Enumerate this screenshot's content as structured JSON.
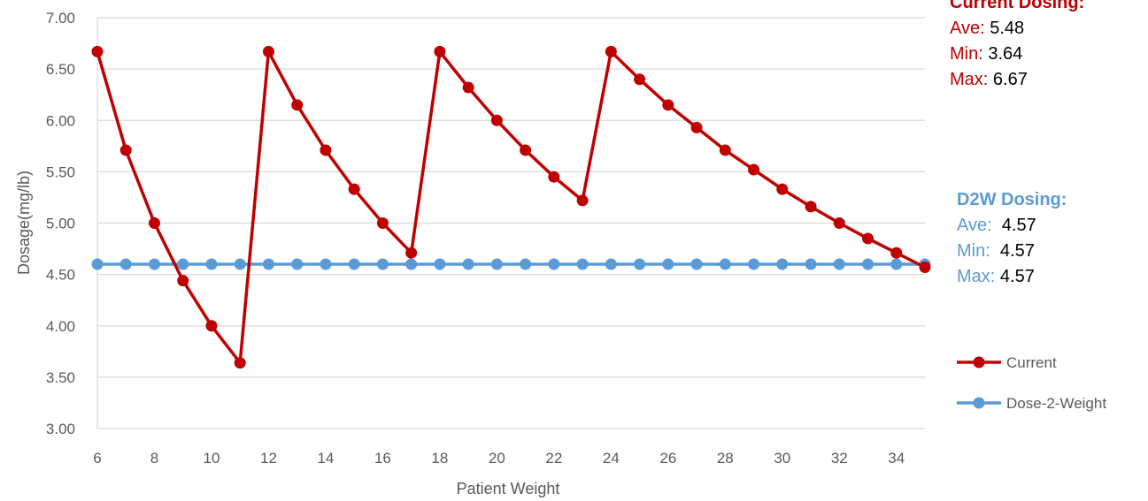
{
  "chart_data": {
    "type": "line",
    "xlabel": "Patient Weight",
    "ylabel": "Dosage(mg/lb)",
    "xlim": [
      6,
      35
    ],
    "ylim": [
      3.0,
      7.0
    ],
    "x_ticks": [
      "6",
      "8",
      "10",
      "12",
      "14",
      "16",
      "18",
      "20",
      "22",
      "24",
      "26",
      "28",
      "30",
      "32",
      "34"
    ],
    "y_ticks": [
      "3.00",
      "3.50",
      "4.00",
      "4.50",
      "5.00",
      "5.50",
      "6.00",
      "6.50",
      "7.00"
    ],
    "x": [
      6,
      7,
      8,
      9,
      10,
      11,
      12,
      13,
      14,
      15,
      16,
      17,
      18,
      19,
      20,
      21,
      22,
      23,
      24,
      25,
      26,
      27,
      28,
      29,
      30,
      31,
      32,
      33,
      34,
      35
    ],
    "grid": "horizontal",
    "legend_position": "right",
    "series": [
      {
        "name": "Current",
        "color": "#c00000",
        "values": [
          6.67,
          5.71,
          5.0,
          4.44,
          4.0,
          3.64,
          6.67,
          6.15,
          5.71,
          5.33,
          5.0,
          4.71,
          6.67,
          6.32,
          6.0,
          5.71,
          5.45,
          5.22,
          6.67,
          6.4,
          6.15,
          5.93,
          5.71,
          5.52,
          5.33,
          5.16,
          5.0,
          4.85,
          4.71,
          4.57
        ]
      },
      {
        "name": "Dose-2-Weight",
        "color": "#5b9bd5",
        "values": [
          4.6,
          4.6,
          4.6,
          4.6,
          4.6,
          4.6,
          4.6,
          4.6,
          4.6,
          4.6,
          4.6,
          4.6,
          4.6,
          4.6,
          4.6,
          4.6,
          4.6,
          4.6,
          4.6,
          4.6,
          4.6,
          4.6,
          4.6,
          4.6,
          4.6,
          4.6,
          4.6,
          4.6,
          4.6,
          4.6
        ]
      }
    ]
  },
  "annotations": {
    "current": {
      "heading": "Current Dosing:",
      "ave_label": "Ave:",
      "ave_value": "5.48",
      "min_label": "Min:",
      "min_value": "3.64",
      "max_label": "Max:",
      "max_value": "6.67"
    },
    "d2w": {
      "heading": "D2W Dosing:",
      "ave_label": "Ave:",
      "ave_value": "4.57",
      "min_label": "Min:",
      "min_value": "4.57",
      "max_label": "Max:",
      "max_value": "4.57"
    }
  }
}
